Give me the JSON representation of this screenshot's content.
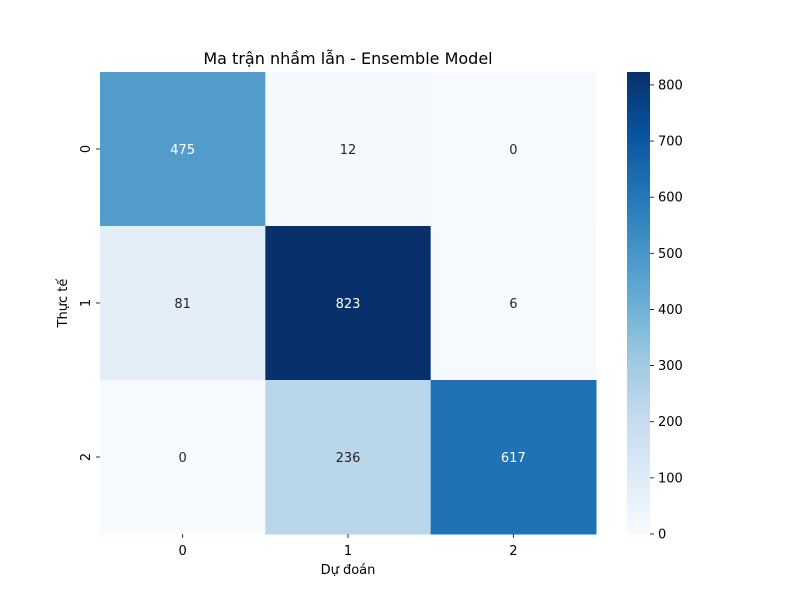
{
  "chart_data": {
    "type": "heatmap",
    "title": "Ma trận nhầm lẫn - Ensemble Model",
    "xlabel": "Dự đoán",
    "ylabel": "Thực tế",
    "x_categories": [
      "0",
      "1",
      "2"
    ],
    "y_categories": [
      "0",
      "1",
      "2"
    ],
    "values": [
      [
        475,
        12,
        0
      ],
      [
        81,
        823,
        6
      ],
      [
        0,
        236,
        617
      ]
    ],
    "colormap": "Blues",
    "colorbar": {
      "range": [
        0,
        823
      ],
      "ticks": [
        0,
        100,
        200,
        300,
        400,
        500,
        600,
        700,
        800
      ]
    },
    "colors": {
      "low": "#f7fbff",
      "high": "#08306b",
      "text_light": "#ffffff",
      "text_dark": "#262626"
    }
  }
}
